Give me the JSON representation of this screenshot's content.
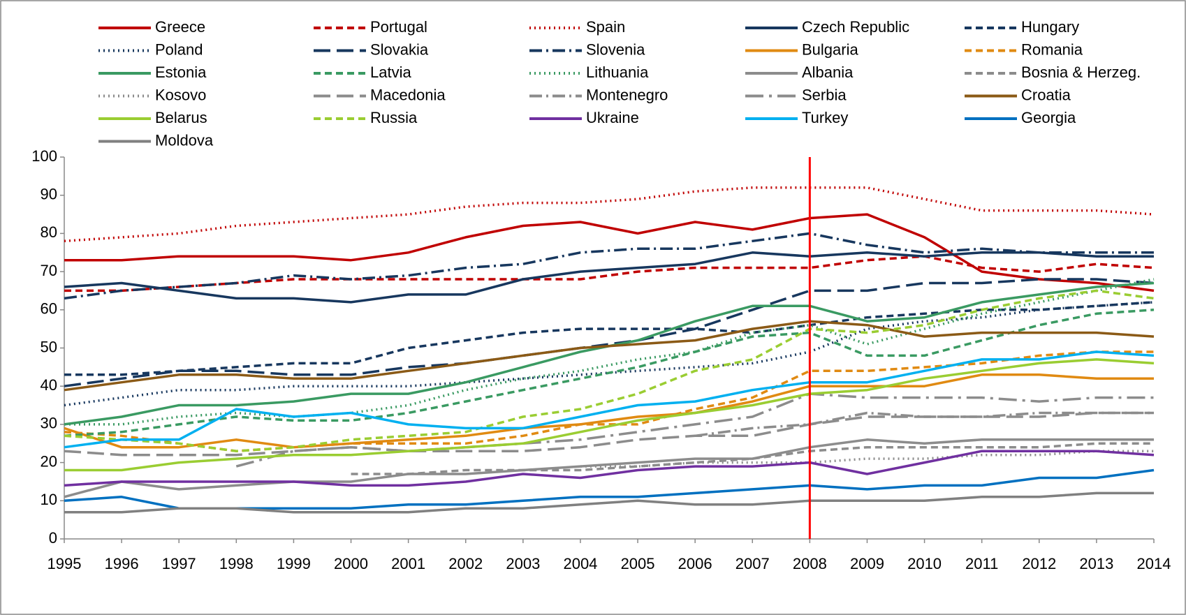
{
  "chart_data": {
    "type": "line",
    "categories": [
      "1995",
      "1996",
      "1997",
      "1998",
      "1999",
      "2000",
      "2001",
      "2002",
      "2003",
      "2004",
      "2005",
      "2006",
      "2007",
      "2008",
      "2009",
      "2010",
      "2011",
      "2012",
      "2013",
      "2014"
    ],
    "ylim": [
      0,
      100
    ],
    "yticks": [
      0,
      10,
      20,
      30,
      40,
      50,
      60,
      70,
      80,
      90,
      100
    ],
    "grid": false,
    "vline_at": 13,
    "vline_color": "#ff0000",
    "series": [
      {
        "name": "Greece",
        "color": "#c00000",
        "dash": "solid",
        "values": [
          73,
          73,
          74,
          74,
          74,
          73,
          75,
          79,
          82,
          83,
          80,
          83,
          81,
          84,
          85,
          79,
          70,
          68,
          67,
          65
        ]
      },
      {
        "name": "Portugal",
        "color": "#c00000",
        "dash": "dashed",
        "values": [
          65,
          65,
          66,
          67,
          68,
          68,
          68,
          68,
          68,
          68,
          70,
          71,
          71,
          71,
          73,
          74,
          71,
          70,
          72,
          71
        ]
      },
      {
        "name": "Spain",
        "color": "#c00000",
        "dash": "dotted",
        "values": [
          78,
          79,
          80,
          82,
          83,
          84,
          85,
          87,
          88,
          88,
          89,
          91,
          92,
          92,
          92,
          89,
          86,
          86,
          86,
          85
        ]
      },
      {
        "name": "Czech Republic",
        "color": "#17375e",
        "dash": "solid",
        "values": [
          66,
          67,
          65,
          63,
          63,
          62,
          64,
          64,
          68,
          70,
          71,
          72,
          75,
          74,
          75,
          74,
          75,
          75,
          74,
          74
        ]
      },
      {
        "name": "Hungary",
        "color": "#17375e",
        "dash": "dashed",
        "values": [
          43,
          43,
          44,
          45,
          46,
          46,
          50,
          52,
          54,
          55,
          55,
          55,
          54,
          56,
          58,
          59,
          60,
          60,
          61,
          62
        ]
      },
      {
        "name": "Poland",
        "color": "#17375e",
        "dash": "dotted",
        "values": [
          35,
          37,
          39,
          39,
          40,
          40,
          40,
          41,
          42,
          43,
          44,
          45,
          46,
          49,
          55,
          57,
          58,
          60,
          61,
          62
        ]
      },
      {
        "name": "Slovakia",
        "color": "#17375e",
        "dash": "longdash",
        "values": [
          40,
          42,
          44,
          44,
          43,
          43,
          45,
          46,
          48,
          50,
          52,
          55,
          60,
          65,
          65,
          67,
          67,
          68,
          68,
          67
        ]
      },
      {
        "name": "Slovenia",
        "color": "#17375e",
        "dash": "dashdot",
        "values": [
          63,
          65,
          66,
          67,
          69,
          68,
          69,
          71,
          72,
          75,
          76,
          76,
          78,
          80,
          77,
          75,
          76,
          75,
          75,
          75
        ]
      },
      {
        "name": "Bulgaria",
        "color": "#e08a12",
        "dash": "solid",
        "values": [
          29,
          24,
          24,
          26,
          24,
          25,
          26,
          27,
          29,
          30,
          32,
          33,
          36,
          40,
          40,
          40,
          43,
          43,
          42,
          42
        ]
      },
      {
        "name": "Romania",
        "color": "#e08a12",
        "dash": "dashed",
        "values": [
          28,
          27,
          25,
          23,
          24,
          25,
          25,
          25,
          27,
          30,
          30,
          34,
          37,
          44,
          44,
          45,
          46,
          48,
          49,
          49
        ]
      },
      {
        "name": "Estonia",
        "color": "#3a9a62",
        "dash": "solid",
        "values": [
          30,
          32,
          35,
          35,
          36,
          38,
          38,
          41,
          45,
          49,
          52,
          57,
          61,
          61,
          57,
          58,
          62,
          64,
          66,
          67
        ]
      },
      {
        "name": "Latvia",
        "color": "#3a9a62",
        "dash": "dashed",
        "values": [
          27,
          28,
          30,
          32,
          31,
          31,
          33,
          36,
          39,
          42,
          45,
          49,
          53,
          54,
          48,
          48,
          52,
          56,
          59,
          60
        ]
      },
      {
        "name": "Lithuania",
        "color": "#3a9a62",
        "dash": "dotted",
        "values": [
          30,
          30,
          32,
          33,
          32,
          33,
          35,
          39,
          42,
          44,
          47,
          49,
          54,
          56,
          51,
          55,
          59,
          62,
          65,
          68
        ]
      },
      {
        "name": "Albania",
        "color": "#8c8c8c",
        "dash": "solid",
        "values": [
          11,
          15,
          13,
          14,
          15,
          15,
          17,
          17,
          18,
          19,
          20,
          21,
          21,
          24,
          26,
          25,
          26,
          26,
          26,
          26
        ]
      },
      {
        "name": "Bosnia & Herzeg.",
        "color": "#8c8c8c",
        "dash": "dashed",
        "values": [
          null,
          null,
          null,
          null,
          null,
          17,
          17,
          18,
          18,
          18,
          19,
          20,
          21,
          23,
          24,
          24,
          24,
          24,
          25,
          25
        ]
      },
      {
        "name": "Kosovo",
        "color": "#8c8c8c",
        "dash": "dotted",
        "values": [
          null,
          null,
          null,
          null,
          null,
          null,
          null,
          null,
          null,
          19,
          19,
          20,
          20,
          20,
          21,
          21,
          22,
          22,
          23,
          23
        ]
      },
      {
        "name": "Macedonia",
        "color": "#8c8c8c",
        "dash": "longdash",
        "values": [
          23,
          22,
          22,
          22,
          23,
          24,
          23,
          23,
          23,
          24,
          26,
          27,
          27,
          30,
          32,
          32,
          32,
          32,
          33,
          33
        ]
      },
      {
        "name": "Montenegro",
        "color": "#8c8c8c",
        "dash": "dashdot",
        "values": [
          null,
          null,
          null,
          null,
          null,
          null,
          null,
          null,
          null,
          null,
          null,
          27,
          29,
          30,
          33,
          32,
          32,
          33,
          33,
          33
        ]
      },
      {
        "name": "Serbia",
        "color": "#8c8c8c",
        "dash": "longdashdot",
        "values": [
          null,
          null,
          null,
          19,
          23,
          24,
          23,
          24,
          25,
          26,
          28,
          30,
          32,
          38,
          37,
          37,
          37,
          36,
          37,
          37
        ]
      },
      {
        "name": "Croatia",
        "color": "#8b5a16",
        "dash": "solid",
        "values": [
          39,
          41,
          43,
          43,
          42,
          42,
          44,
          46,
          48,
          50,
          51,
          52,
          55,
          57,
          56,
          53,
          54,
          54,
          54,
          53
        ]
      },
      {
        "name": "Belarus",
        "color": "#9acd32",
        "dash": "solid",
        "values": [
          18,
          18,
          20,
          21,
          22,
          22,
          23,
          24,
          25,
          28,
          31,
          33,
          35,
          38,
          39,
          42,
          44,
          46,
          47,
          46
        ]
      },
      {
        "name": "Russia",
        "color": "#9acd32",
        "dash": "dashed",
        "values": [
          27,
          26,
          25,
          23,
          24,
          26,
          27,
          28,
          32,
          34,
          38,
          44,
          47,
          55,
          54,
          56,
          60,
          63,
          65,
          63
        ]
      },
      {
        "name": "Ukraine",
        "color": "#7030a0",
        "dash": "solid",
        "values": [
          14,
          15,
          15,
          15,
          15,
          14,
          14,
          15,
          17,
          16,
          18,
          19,
          19,
          20,
          17,
          20,
          23,
          23,
          23,
          22
        ]
      },
      {
        "name": "Turkey",
        "color": "#00b0f0",
        "dash": "solid",
        "values": [
          24,
          26,
          26,
          34,
          32,
          33,
          30,
          29,
          29,
          32,
          35,
          36,
          39,
          41,
          41,
          44,
          47,
          47,
          49,
          48
        ]
      },
      {
        "name": "Georgia",
        "color": "#0070c0",
        "dash": "solid",
        "values": [
          10,
          11,
          8,
          8,
          8,
          8,
          9,
          9,
          10,
          11,
          11,
          12,
          13,
          14,
          13,
          14,
          14,
          16,
          16,
          18
        ]
      },
      {
        "name": "Moldova",
        "color": "#808080",
        "dash": "solid",
        "values": [
          7,
          7,
          8,
          8,
          7,
          7,
          7,
          8,
          8,
          9,
          10,
          9,
          9,
          10,
          10,
          10,
          11,
          11,
          12,
          12
        ]
      }
    ]
  }
}
